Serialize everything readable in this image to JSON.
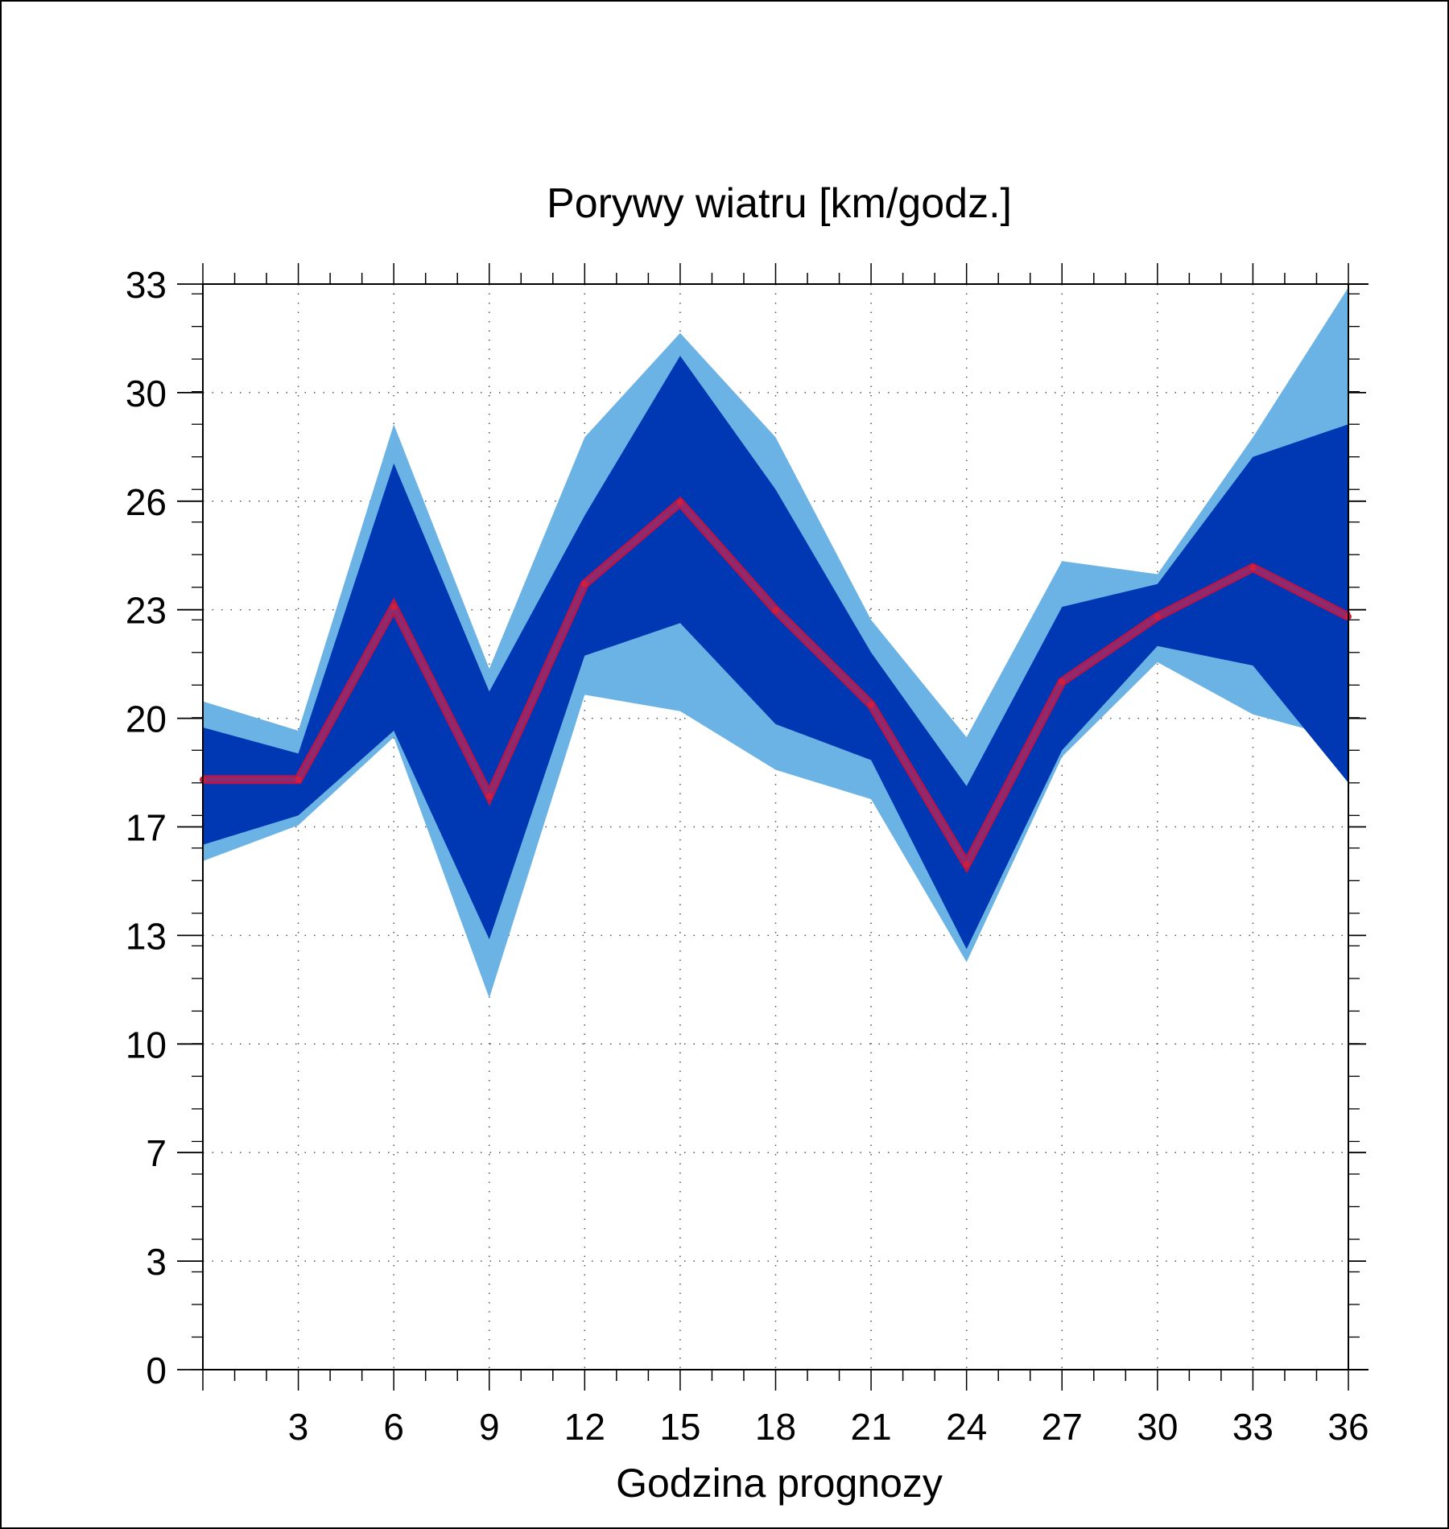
{
  "chart_data": {
    "type": "area",
    "title": "Porywy wiatru [km/godz.]",
    "xlabel": "Godzina prognozy",
    "ylabel": "",
    "x": [
      0,
      3,
      6,
      9,
      12,
      15,
      18,
      21,
      24,
      27,
      30,
      33,
      36
    ],
    "x_tick_labels": [
      "3",
      "6",
      "9",
      "12",
      "15",
      "18",
      "21",
      "24",
      "27",
      "30",
      "33",
      "36"
    ],
    "x_tick_values": [
      3,
      6,
      9,
      12,
      15,
      18,
      21,
      24,
      27,
      30,
      33,
      36
    ],
    "y_tick_labels": [
      "0",
      "3",
      "7",
      "10",
      "13",
      "17",
      "20",
      "23",
      "26",
      "30",
      "33"
    ],
    "xlim": [
      0,
      36
    ],
    "ylim": [
      0,
      33.3
    ],
    "grid": true,
    "series": [
      {
        "role": "outer-band-upper",
        "color": "#6cb3e5",
        "values": [
          20.5,
          19.6,
          29.0,
          21.5,
          28.6,
          31.8,
          28.6,
          23.0,
          19.4,
          24.8,
          24.4,
          28.6,
          33.2
        ]
      },
      {
        "role": "outer-band-lower",
        "color": "#6cb3e5",
        "values": [
          15.6,
          16.7,
          19.4,
          11.4,
          20.7,
          20.2,
          18.4,
          17.5,
          12.5,
          18.8,
          21.7,
          20.1,
          19.3
        ]
      },
      {
        "role": "inner-band-upper",
        "color": "#0038b4",
        "values": [
          19.7,
          18.9,
          27.8,
          20.8,
          26.2,
          31.1,
          27.0,
          22.0,
          17.9,
          23.4,
          24.1,
          28.0,
          29.0
        ]
      },
      {
        "role": "inner-band-lower",
        "color": "#0038b4",
        "values": [
          16.1,
          17.0,
          19.6,
          13.2,
          21.9,
          22.9,
          19.8,
          18.7,
          12.9,
          19.0,
          22.2,
          21.6,
          18.0
        ]
      },
      {
        "role": "median-line",
        "color": "#9c1e5f",
        "values": [
          18.1,
          18.1,
          23.4,
          17.6,
          24.1,
          26.6,
          23.3,
          20.4,
          15.5,
          21.1,
          23.1,
          24.6,
          23.1
        ]
      }
    ]
  }
}
